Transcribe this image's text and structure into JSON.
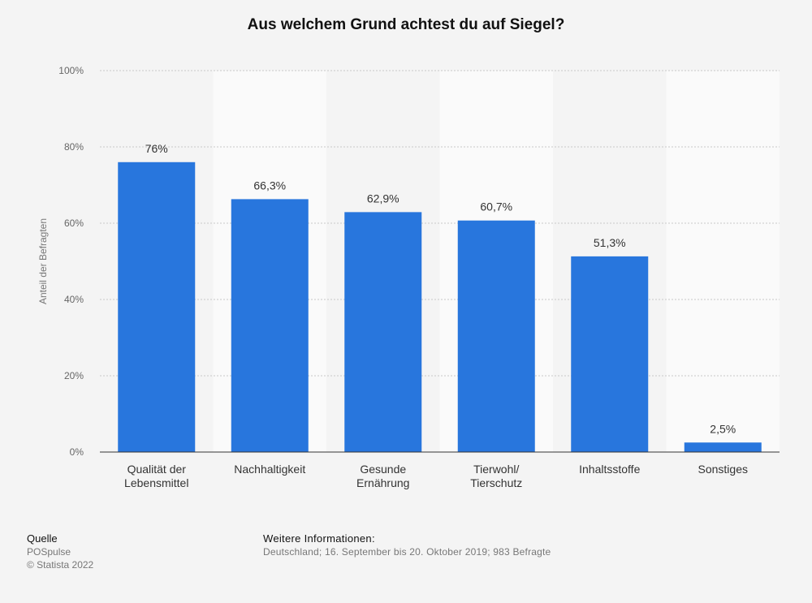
{
  "chart_data": {
    "type": "bar",
    "title": "Aus welchem Grund achtest du auf Siegel?",
    "ylabel": "Anteil der Befragten",
    "xlabel": "",
    "categories": [
      [
        "Qualität der",
        "Lebensmittel"
      ],
      [
        "Nachhaltigkeit"
      ],
      [
        "Gesunde",
        "Ernährung"
      ],
      [
        "Tierwohl/",
        "Tierschutz"
      ],
      [
        "Inhaltsstoffe"
      ],
      [
        "Sonstiges"
      ]
    ],
    "values": [
      76,
      66.3,
      62.9,
      60.7,
      51.3,
      2.5
    ],
    "value_labels": [
      "76%",
      "66,3%",
      "62,9%",
      "60,7%",
      "51,3%",
      "2,5%"
    ],
    "ylim": [
      0,
      100
    ],
    "yticks": [
      0,
      20,
      40,
      60,
      80,
      100
    ],
    "ytick_labels": [
      "0%",
      "20%",
      "40%",
      "60%",
      "80%",
      "100%"
    ],
    "grid": true,
    "bar_color": "#2876dd"
  },
  "source": {
    "heading": "Quelle",
    "lines": [
      "POSpulse",
      "© Statista 2022"
    ]
  },
  "info": {
    "heading": "Weitere Informationen:",
    "text": "Deutschland; 16. September bis 20. Oktober 2019; 983 Befragte"
  }
}
